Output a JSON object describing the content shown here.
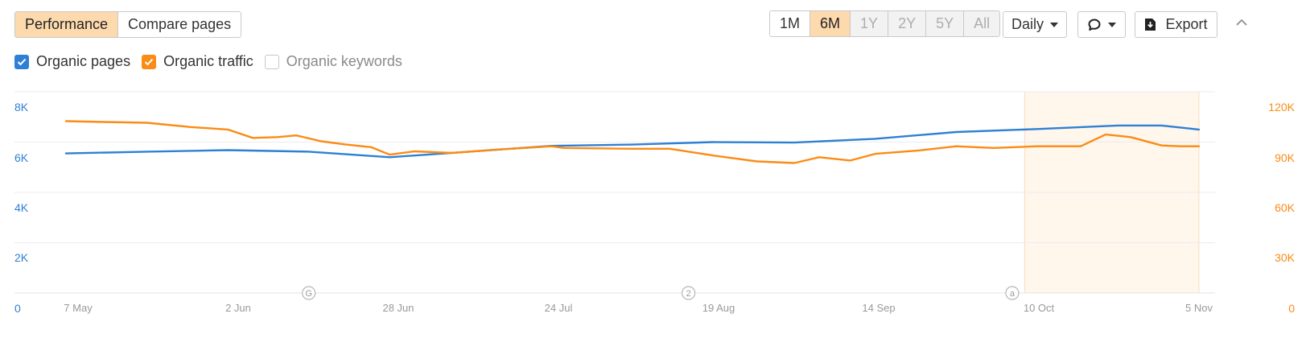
{
  "toolbar": {
    "tabs": [
      {
        "label": "Performance",
        "active": true
      },
      {
        "label": "Compare pages",
        "active": false
      }
    ],
    "ranges": [
      {
        "label": "1M",
        "state": "normal"
      },
      {
        "label": "6M",
        "state": "active"
      },
      {
        "label": "1Y",
        "state": "disabled"
      },
      {
        "label": "2Y",
        "state": "disabled"
      },
      {
        "label": "5Y",
        "state": "disabled"
      },
      {
        "label": "All",
        "state": "disabled"
      }
    ],
    "interval_label": "Daily",
    "annotation_icon": "speech-bubble-icon",
    "export_label": "Export",
    "export_icon": "download-icon",
    "collapse_icon": "chevron-up-icon"
  },
  "legend": [
    {
      "label": "Organic pages",
      "checked": true,
      "color": "#2f80d4"
    },
    {
      "label": "Organic traffic",
      "checked": true,
      "color": "#fb8b15"
    },
    {
      "label": "Organic keywords",
      "checked": false,
      "color": "#c7c7c7"
    }
  ],
  "markers": [
    "G",
    "2",
    "a"
  ],
  "chart_data": {
    "type": "line",
    "x_ticks": [
      "7 May",
      "2 Jun",
      "28 Jun",
      "24 Jul",
      "19 Aug",
      "14 Sep",
      "10 Oct",
      "5 Nov"
    ],
    "x_range": [
      "2024-05-07",
      "2024-11-05"
    ],
    "left_axis": {
      "ticks": [
        "8K",
        "6K",
        "4K",
        "2K",
        "0"
      ],
      "range": [
        0,
        8000
      ],
      "color": "#2f80d4"
    },
    "right_axis": {
      "ticks": [
        "120K",
        "90K",
        "60K",
        "30K",
        "0"
      ],
      "range": [
        0,
        120000
      ],
      "color": "#fb8b15"
    },
    "grid": true,
    "highlight": {
      "from": "2024-10-08",
      "to": "2024-11-05"
    },
    "events": [
      {
        "date": "2024-06-15",
        "label": "G"
      },
      {
        "date": "2024-08-15",
        "label": "2"
      },
      {
        "date": "2024-10-06",
        "label": "a"
      }
    ],
    "series": [
      {
        "name": "Organic pages",
        "axis": "left",
        "color": "#2f80d4",
        "points": [
          [
            "2024-05-07",
            5550
          ],
          [
            "2024-05-20",
            5620
          ],
          [
            "2024-06-02",
            5680
          ],
          [
            "2024-06-15",
            5620
          ],
          [
            "2024-06-28",
            5400
          ],
          [
            "2024-07-08",
            5570
          ],
          [
            "2024-07-24",
            5850
          ],
          [
            "2024-08-06",
            5900
          ],
          [
            "2024-08-19",
            6000
          ],
          [
            "2024-09-01",
            5980
          ],
          [
            "2024-09-14",
            6130
          ],
          [
            "2024-09-27",
            6400
          ],
          [
            "2024-10-10",
            6520
          ],
          [
            "2024-10-23",
            6660
          ],
          [
            "2024-10-30",
            6660
          ],
          [
            "2024-11-05",
            6500
          ]
        ]
      },
      {
        "name": "Organic traffic",
        "axis": "right",
        "color": "#fb8b15",
        "points": [
          [
            "2024-05-07",
            102500
          ],
          [
            "2024-05-13",
            102000
          ],
          [
            "2024-05-20",
            101500
          ],
          [
            "2024-05-27",
            99000
          ],
          [
            "2024-06-02",
            97500
          ],
          [
            "2024-06-06",
            92500
          ],
          [
            "2024-06-10",
            93000
          ],
          [
            "2024-06-13",
            94000
          ],
          [
            "2024-06-17",
            90500
          ],
          [
            "2024-06-21",
            88500
          ],
          [
            "2024-06-25",
            87000
          ],
          [
            "2024-06-28",
            82500
          ],
          [
            "2024-07-02",
            84500
          ],
          [
            "2024-07-08",
            83500
          ],
          [
            "2024-07-15",
            85500
          ],
          [
            "2024-07-24",
            87500
          ],
          [
            "2024-07-26",
            86500
          ],
          [
            "2024-08-06",
            86000
          ],
          [
            "2024-08-12",
            86000
          ],
          [
            "2024-08-19",
            82000
          ],
          [
            "2024-08-26",
            78500
          ],
          [
            "2024-09-01",
            77500
          ],
          [
            "2024-09-05",
            81000
          ],
          [
            "2024-09-10",
            79000
          ],
          [
            "2024-09-14",
            83000
          ],
          [
            "2024-09-21",
            85000
          ],
          [
            "2024-09-27",
            87500
          ],
          [
            "2024-10-03",
            86500
          ],
          [
            "2024-10-10",
            87500
          ],
          [
            "2024-10-17",
            87500
          ],
          [
            "2024-10-21",
            94500
          ],
          [
            "2024-10-25",
            93000
          ],
          [
            "2024-10-30",
            88000
          ],
          [
            "2024-11-02",
            87500
          ],
          [
            "2024-11-05",
            87500
          ]
        ]
      }
    ]
  }
}
